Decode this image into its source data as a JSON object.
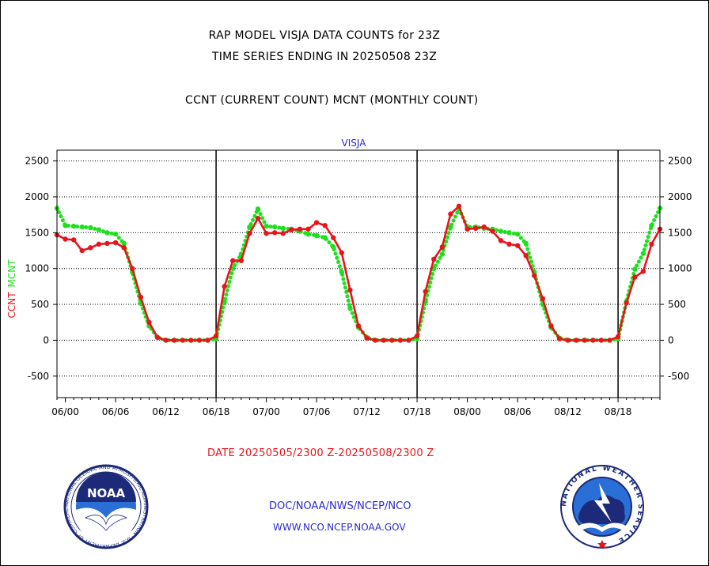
{
  "header": {
    "title_line1": "RAP MODEL VISJA DATA COUNTS for 23Z",
    "title_line2": "TIME SERIES ENDING IN 20250508 23Z",
    "subtitle": "CCNT (CURRENT COUNT) MCNT (MONTHLY COUNT)"
  },
  "footer": {
    "date_range": "DATE 20250505/2300 Z-20250508/2300 Z",
    "org": "DOC/NOAA/NWS/NCEP/NCO",
    "url": "WWW.NCO.NCEP.NOAA.GOV"
  },
  "logos": {
    "left": {
      "center_text": "NOAA",
      "ring_text": "NATIONAL OCEANIC AND ATMOSPHERIC ADMINISTRATION · U.S. DEPARTMENT OF COMMERCE"
    },
    "right": {
      "ring_text": "NATIONAL WEATHER SERVICE"
    }
  },
  "colors": {
    "ccnt": "#e8141b",
    "mcnt": "#1de01d",
    "label_blue": "#2a2ad0"
  },
  "chart_data": {
    "type": "line",
    "title": "VISJA",
    "ylabel_series": [
      "CCNT",
      "MCNT"
    ],
    "x_tick_labels": [
      "06/00",
      "06/06",
      "06/12",
      "06/18",
      "07/00",
      "07/06",
      "07/12",
      "07/18",
      "08/00",
      "08/06",
      "08/12",
      "08/18"
    ],
    "x_tick_positions": [
      0,
      6,
      12,
      18,
      24,
      30,
      36,
      42,
      48,
      54,
      60,
      66
    ],
    "day_boundaries": [
      18,
      42,
      66
    ],
    "xlim": [
      -1,
      71
    ],
    "ylim": [
      -800,
      2650
    ],
    "y_ticks": [
      -500,
      0,
      500,
      1000,
      1500,
      2000,
      2500
    ],
    "x_unit": "hours from 06/00 UTC",
    "series": [
      {
        "name": "CCNT",
        "color": "#e8141b",
        "style": "solid",
        "points": [
          [
            -1,
            1470
          ],
          [
            0,
            1410
          ],
          [
            1,
            1400
          ],
          [
            2,
            1250
          ],
          [
            3,
            1290
          ],
          [
            4,
            1340
          ],
          [
            5,
            1350
          ],
          [
            6,
            1360
          ],
          [
            7,
            1290
          ],
          [
            8,
            1000
          ],
          [
            9,
            600
          ],
          [
            10,
            250
          ],
          [
            11,
            40
          ],
          [
            12,
            0
          ],
          [
            13,
            0
          ],
          [
            14,
            0
          ],
          [
            15,
            0
          ],
          [
            16,
            0
          ],
          [
            17,
            0
          ],
          [
            18,
            60
          ],
          [
            19,
            750
          ],
          [
            20,
            1110
          ],
          [
            21,
            1110
          ],
          [
            22,
            1490
          ],
          [
            23,
            1700
          ],
          [
            24,
            1490
          ],
          [
            25,
            1500
          ],
          [
            26,
            1490
          ],
          [
            27,
            1540
          ],
          [
            28,
            1550
          ],
          [
            29,
            1550
          ],
          [
            30,
            1640
          ],
          [
            31,
            1600
          ],
          [
            32,
            1430
          ],
          [
            33,
            1220
          ],
          [
            34,
            700
          ],
          [
            35,
            200
          ],
          [
            36,
            30
          ],
          [
            37,
            0
          ],
          [
            38,
            0
          ],
          [
            39,
            0
          ],
          [
            40,
            0
          ],
          [
            41,
            0
          ],
          [
            42,
            60
          ],
          [
            43,
            680
          ],
          [
            44,
            1130
          ],
          [
            45,
            1300
          ],
          [
            46,
            1760
          ],
          [
            47,
            1870
          ],
          [
            48,
            1550
          ],
          [
            49,
            1560
          ],
          [
            50,
            1580
          ],
          [
            51,
            1520
          ],
          [
            52,
            1390
          ],
          [
            53,
            1340
          ],
          [
            54,
            1320
          ],
          [
            55,
            1180
          ],
          [
            56,
            900
          ],
          [
            57,
            580
          ],
          [
            58,
            200
          ],
          [
            59,
            20
          ],
          [
            60,
            0
          ],
          [
            61,
            0
          ],
          [
            62,
            0
          ],
          [
            63,
            0
          ],
          [
            64,
            0
          ],
          [
            65,
            0
          ],
          [
            66,
            50
          ],
          [
            67,
            520
          ],
          [
            68,
            880
          ],
          [
            69,
            960
          ],
          [
            70,
            1340
          ],
          [
            71,
            1550
          ]
        ]
      },
      {
        "name": "MCNT",
        "color": "#1de01d",
        "style": "dotted",
        "points": [
          [
            -1,
            1840
          ],
          [
            0,
            1600
          ],
          [
            1,
            1590
          ],
          [
            2,
            1580
          ],
          [
            3,
            1570
          ],
          [
            4,
            1540
          ],
          [
            5,
            1500
          ],
          [
            6,
            1480
          ],
          [
            7,
            1350
          ],
          [
            8,
            950
          ],
          [
            9,
            520
          ],
          [
            10,
            200
          ],
          [
            11,
            40
          ],
          [
            12,
            0
          ],
          [
            13,
            0
          ],
          [
            14,
            0
          ],
          [
            15,
            0
          ],
          [
            16,
            0
          ],
          [
            17,
            0
          ],
          [
            18,
            20
          ],
          [
            19,
            540
          ],
          [
            20,
            1000
          ],
          [
            21,
            1200
          ],
          [
            22,
            1580
          ],
          [
            23,
            1830
          ],
          [
            24,
            1590
          ],
          [
            25,
            1580
          ],
          [
            26,
            1560
          ],
          [
            27,
            1550
          ],
          [
            28,
            1520
          ],
          [
            29,
            1480
          ],
          [
            30,
            1460
          ],
          [
            31,
            1430
          ],
          [
            32,
            1300
          ],
          [
            33,
            950
          ],
          [
            34,
            450
          ],
          [
            35,
            180
          ],
          [
            36,
            40
          ],
          [
            37,
            0
          ],
          [
            38,
            0
          ],
          [
            39,
            0
          ],
          [
            40,
            0
          ],
          [
            41,
            0
          ],
          [
            42,
            20
          ],
          [
            43,
            540
          ],
          [
            44,
            1000
          ],
          [
            45,
            1200
          ],
          [
            46,
            1580
          ],
          [
            47,
            1830
          ],
          [
            48,
            1580
          ],
          [
            49,
            1580
          ],
          [
            50,
            1560
          ],
          [
            51,
            1550
          ],
          [
            52,
            1520
          ],
          [
            53,
            1500
          ],
          [
            54,
            1480
          ],
          [
            55,
            1350
          ],
          [
            56,
            950
          ],
          [
            57,
            500
          ],
          [
            58,
            180
          ],
          [
            59,
            30
          ],
          [
            60,
            0
          ],
          [
            61,
            0
          ],
          [
            62,
            0
          ],
          [
            63,
            0
          ],
          [
            64,
            0
          ],
          [
            65,
            0
          ],
          [
            66,
            20
          ],
          [
            67,
            540
          ],
          [
            68,
            990
          ],
          [
            69,
            1210
          ],
          [
            70,
            1600
          ],
          [
            71,
            1840
          ]
        ]
      }
    ]
  }
}
